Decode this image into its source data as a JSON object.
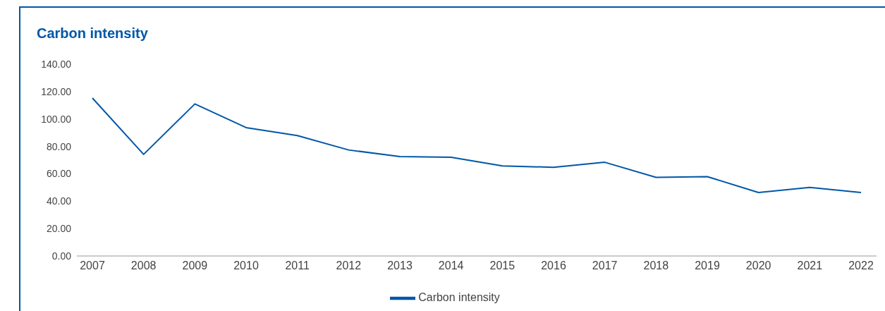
{
  "chart_data": {
    "type": "line",
    "title": "Carbon intensity",
    "categories": [
      "2007",
      "2008",
      "2009",
      "2010",
      "2011",
      "2012",
      "2013",
      "2014",
      "2015",
      "2016",
      "2017",
      "2018",
      "2019",
      "2020",
      "2021",
      "2022"
    ],
    "series": [
      {
        "name": "Carbon intensity",
        "color": "#0057a8",
        "values": [
          115.3,
          74.2,
          111.0,
          93.7,
          87.9,
          77.4,
          72.6,
          72.1,
          65.8,
          64.7,
          68.4,
          57.4,
          57.9,
          46.3,
          50.0,
          46.3
        ]
      }
    ],
    "ylim": [
      0,
      140
    ],
    "yticks": [
      {
        "value": 0,
        "label": "0.00"
      },
      {
        "value": 20,
        "label": "20.00"
      },
      {
        "value": 40,
        "label": "40.00"
      },
      {
        "value": 60,
        "label": "60.00"
      },
      {
        "value": 80,
        "label": "80.00"
      },
      {
        "value": 100,
        "label": "100.00"
      },
      {
        "value": 120,
        "label": "120.00"
      },
      {
        "value": 140,
        "label": "140.00"
      }
    ],
    "grid": false,
    "legend": "bottom",
    "marker": "none",
    "line_style": "solid"
  }
}
